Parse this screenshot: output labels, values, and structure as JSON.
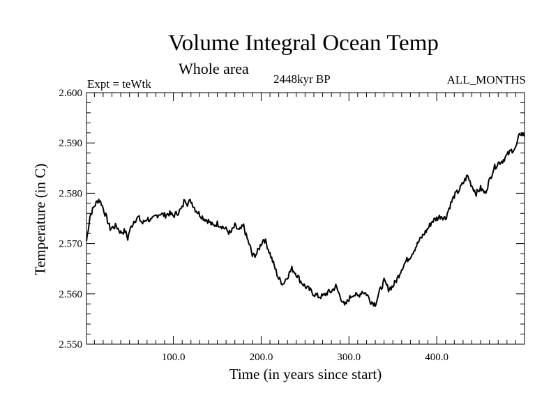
{
  "chart_data": {
    "type": "line",
    "title": "Volume Integral Ocean Temp",
    "subtitle": "Whole area",
    "annotations": {
      "left": "Expt = teWtk",
      "center": "2448kyr BP",
      "right": "ALL_MONTHS"
    },
    "xlabel": "Time (in years since start)",
    "ylabel": "Temperature (in C)",
    "xlim": [
      1,
      500
    ],
    "ylim": [
      2.55,
      2.6
    ],
    "xticks": [
      100,
      200,
      300,
      400
    ],
    "xtick_labels": [
      "100.0",
      "200.0",
      "300.0",
      "400.0"
    ],
    "yticks": [
      2.55,
      2.56,
      2.57,
      2.58,
      2.59,
      2.6
    ],
    "ytick_labels": [
      "2.550",
      "2.560",
      "2.570",
      "2.580",
      "2.590",
      "2.600"
    ],
    "grid": false,
    "series": [
      {
        "name": "Volume Integral Ocean Temp",
        "color": "#000000",
        "x": [
          1,
          5,
          10,
          15,
          18,
          22,
          28,
          35,
          40,
          45,
          48,
          50,
          55,
          60,
          65,
          70,
          75,
          80,
          85,
          90,
          95,
          100,
          105,
          110,
          113,
          116,
          120,
          125,
          130,
          135,
          140,
          145,
          150,
          155,
          160,
          165,
          170,
          175,
          180,
          183,
          185,
          188,
          190,
          195,
          200,
          203,
          206,
          210,
          215,
          220,
          225,
          230,
          235,
          240,
          245,
          250,
          255,
          260,
          265,
          270,
          275,
          280,
          285,
          290,
          293,
          295,
          300,
          305,
          310,
          315,
          320,
          325,
          330,
          335,
          340,
          345,
          350,
          355,
          360,
          365,
          370,
          375,
          380,
          385,
          390,
          395,
          400,
          405,
          410,
          415,
          420,
          425,
          430,
          435,
          440,
          445,
          450,
          455,
          460,
          465,
          470,
          475,
          480,
          485,
          490,
          495,
          500
        ],
        "values": [
          2.5705,
          2.5755,
          2.5775,
          2.5788,
          2.578,
          2.576,
          2.573,
          2.5735,
          2.5722,
          2.5725,
          2.571,
          2.5725,
          2.5745,
          2.5752,
          2.574,
          2.575,
          2.5745,
          2.5755,
          2.576,
          2.5756,
          2.576,
          2.5755,
          2.5762,
          2.577,
          2.579,
          2.578,
          2.5785,
          2.5768,
          2.5758,
          2.575,
          2.5745,
          2.5735,
          2.574,
          2.5735,
          2.5728,
          2.572,
          2.5735,
          2.5725,
          2.5735,
          2.5715,
          2.5705,
          2.569,
          2.5675,
          2.568,
          2.57,
          2.571,
          2.57,
          2.568,
          2.5655,
          2.563,
          2.562,
          2.5635,
          2.565,
          2.564,
          2.5625,
          2.5615,
          2.5608,
          2.56,
          2.5595,
          2.5595,
          2.5602,
          2.5605,
          2.5615,
          2.5595,
          2.5585,
          2.5575,
          2.559,
          2.56,
          2.5595,
          2.5605,
          2.56,
          2.5585,
          2.558,
          2.5605,
          2.5625,
          2.561,
          2.5615,
          2.563,
          2.565,
          2.5665,
          2.5675,
          2.569,
          2.5705,
          2.5718,
          2.573,
          2.5745,
          2.575,
          2.5755,
          2.575,
          2.5775,
          2.5795,
          2.5805,
          2.582,
          2.5835,
          2.5815,
          2.58,
          2.581,
          2.58,
          2.5825,
          2.585,
          2.586,
          2.5865,
          2.5875,
          2.5885,
          2.589,
          2.592,
          2.5915
        ]
      }
    ]
  }
}
